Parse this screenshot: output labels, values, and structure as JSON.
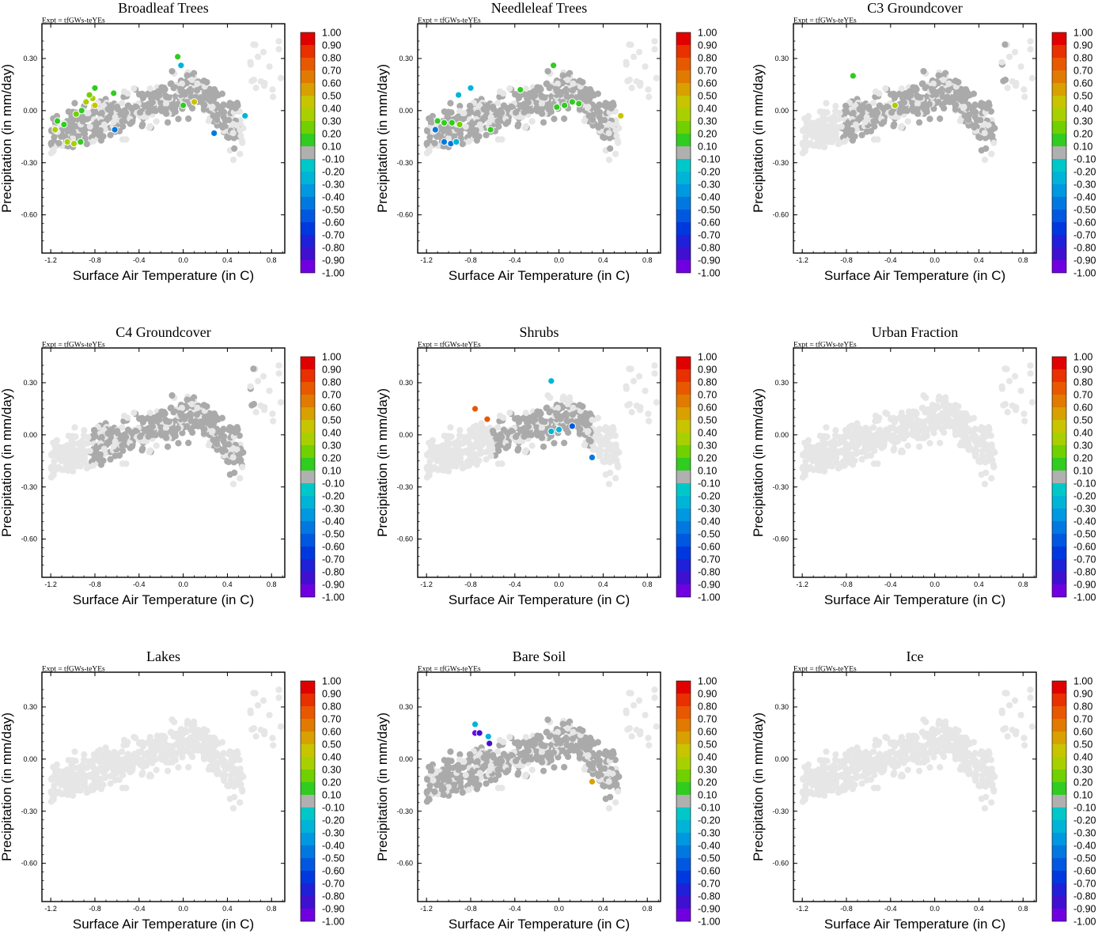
{
  "figure": {
    "expt_label": "Expt = tfGWs-teYEs",
    "xlabel": "Surface Air Temperature (in C)",
    "ylabel": "Precipitation (in mm/day)",
    "xticks": [
      "-1.2",
      "-0.8",
      "-0.4",
      "0.0",
      "0.4",
      "0.8"
    ],
    "yticks": [
      "0.30",
      "0.00",
      "-0.30",
      "-0.60"
    ],
    "colorbar_labels": [
      "1.00",
      "0.90",
      "0.80",
      "0.70",
      "0.60",
      "0.50",
      "0.40",
      "0.30",
      "0.20",
      "0.10",
      "-0.10",
      "-0.20",
      "-0.30",
      "-0.40",
      "-0.50",
      "-0.60",
      "-0.70",
      "-0.80",
      "-0.90",
      "-1.00"
    ],
    "colorbar_colors": [
      "#e00000",
      "#e83000",
      "#e85800",
      "#e07a00",
      "#d8a000",
      "#c8c400",
      "#a8d000",
      "#70d000",
      "#30cc20",
      "#b0b0b0",
      "#00c8c8",
      "#00b4d8",
      "#0098e0",
      "#0078e0",
      "#0058e0",
      "#0038e0",
      "#2020d8",
      "#4010d0",
      "#7000e0"
    ],
    "background_color": "#e6e6e6",
    "gray_color": "#aaaaaa"
  },
  "chart_data": [
    {
      "type": "scatter",
      "title": "Broadleaf Trees",
      "xlim": [
        -1.28,
        0.92
      ],
      "ylim": [
        -0.82,
        0.5
      ],
      "region": {
        "x": [
          -1.2,
          0.5
        ],
        "y": [
          -0.22,
          0.3
        ]
      },
      "highlighted": [
        {
          "x": -0.05,
          "y": 0.31,
          "v": 0.15
        },
        {
          "x": -0.02,
          "y": 0.26,
          "v": -0.25
        },
        {
          "x": -1.14,
          "y": -0.06,
          "v": 0.15
        },
        {
          "x": -1.08,
          "y": -0.08,
          "v": 0.2
        },
        {
          "x": -1.16,
          "y": -0.11,
          "v": 0.3
        },
        {
          "x": -1.05,
          "y": -0.18,
          "v": 0.3
        },
        {
          "x": -0.99,
          "y": -0.19,
          "v": 0.35
        },
        {
          "x": -0.93,
          "y": -0.18,
          "v": 0.2
        },
        {
          "x": -0.97,
          "y": -0.02,
          "v": 0.25
        },
        {
          "x": -0.92,
          "y": 0.0,
          "v": 0.2
        },
        {
          "x": -0.88,
          "y": 0.05,
          "v": 0.3
        },
        {
          "x": -0.82,
          "y": 0.07,
          "v": 0.3
        },
        {
          "x": -0.85,
          "y": 0.09,
          "v": 0.25
        },
        {
          "x": -0.8,
          "y": 0.13,
          "v": 0.15
        },
        {
          "x": -0.63,
          "y": 0.1,
          "v": 0.15
        },
        {
          "x": -0.8,
          "y": 0.03,
          "v": 0.45
        },
        {
          "x": 0.0,
          "y": 0.03,
          "v": 0.2
        },
        {
          "x": 0.1,
          "y": 0.05,
          "v": 0.45
        },
        {
          "x": 0.56,
          "y": -0.03,
          "v": -0.3
        },
        {
          "x": 0.28,
          "y": -0.13,
          "v": -0.45
        },
        {
          "x": -0.62,
          "y": -0.11,
          "v": -0.4
        }
      ]
    },
    {
      "type": "scatter",
      "title": "Needleleaf Trees",
      "xlim": [
        -1.28,
        0.92
      ],
      "ylim": [
        -0.82,
        0.5
      ],
      "region": {
        "x": [
          -1.2,
          0.5
        ],
        "y": [
          -0.22,
          0.3
        ]
      },
      "highlighted": [
        {
          "x": -0.05,
          "y": 0.26,
          "v": 0.2
        },
        {
          "x": -0.35,
          "y": 0.12,
          "v": 0.2
        },
        {
          "x": -0.8,
          "y": 0.13,
          "v": -0.25
        },
        {
          "x": -0.91,
          "y": 0.09,
          "v": -0.3
        },
        {
          "x": -1.1,
          "y": -0.06,
          "v": 0.15
        },
        {
          "x": -1.04,
          "y": -0.07,
          "v": 0.2
        },
        {
          "x": -0.97,
          "y": -0.07,
          "v": 0.2
        },
        {
          "x": -0.9,
          "y": -0.08,
          "v": 0.25
        },
        {
          "x": -1.12,
          "y": -0.11,
          "v": -0.45
        },
        {
          "x": -1.04,
          "y": -0.18,
          "v": -0.4
        },
        {
          "x": -0.98,
          "y": -0.19,
          "v": -0.45
        },
        {
          "x": -0.93,
          "y": -0.18,
          "v": -0.3
        },
        {
          "x": -0.02,
          "y": 0.02,
          "v": 0.2
        },
        {
          "x": 0.05,
          "y": 0.03,
          "v": 0.15
        },
        {
          "x": 0.12,
          "y": 0.05,
          "v": 0.15
        },
        {
          "x": 0.18,
          "y": 0.04,
          "v": 0.2
        },
        {
          "x": 0.56,
          "y": -0.03,
          "v": 0.45
        },
        {
          "x": -0.62,
          "y": -0.11,
          "v": 0.2
        }
      ]
    },
    {
      "type": "scatter",
      "title": "C3 Groundcover",
      "xlim": [
        -1.28,
        0.92
      ],
      "ylim": [
        -0.82,
        0.5
      ],
      "region": {
        "x": [
          -0.85,
          0.7
        ],
        "y": [
          -0.5,
          0.42
        ]
      },
      "highlighted": [
        {
          "x": -0.74,
          "y": 0.2,
          "v": 0.2
        },
        {
          "x": -0.36,
          "y": 0.03,
          "v": 0.3
        }
      ]
    },
    {
      "type": "scatter",
      "title": "C4 Groundcover",
      "xlim": [
        -1.28,
        0.92
      ],
      "ylim": [
        -0.82,
        0.5
      ],
      "region": {
        "x": [
          -0.85,
          0.7
        ],
        "y": [
          -0.55,
          0.42
        ]
      },
      "highlighted": []
    },
    {
      "type": "scatter",
      "title": "Shrubs",
      "xlim": [
        -1.28,
        0.92
      ],
      "ylim": [
        -0.82,
        0.5
      ],
      "region": {
        "x": [
          -0.6,
          0.3
        ],
        "y": [
          -0.3,
          0.2
        ]
      },
      "highlighted": [
        {
          "x": -0.76,
          "y": 0.15,
          "v": 0.75
        },
        {
          "x": -0.65,
          "y": 0.09,
          "v": 0.72
        },
        {
          "x": -0.07,
          "y": 0.31,
          "v": -0.2
        },
        {
          "x": -0.07,
          "y": 0.02,
          "v": -0.25
        },
        {
          "x": 0.0,
          "y": 0.03,
          "v": -0.3
        },
        {
          "x": 0.12,
          "y": 0.05,
          "v": -0.5
        },
        {
          "x": 0.3,
          "y": -0.13,
          "v": -0.4
        }
      ]
    },
    {
      "type": "scatter",
      "title": "Urban Fraction",
      "xlim": [
        -1.28,
        0.92
      ],
      "ylim": [
        -0.82,
        0.5
      ],
      "region": null,
      "highlighted": []
    },
    {
      "type": "scatter",
      "title": "Lakes",
      "xlim": [
        -1.28,
        0.92
      ],
      "ylim": [
        -0.82,
        0.5
      ],
      "region": null,
      "highlighted": []
    },
    {
      "type": "scatter",
      "title": "Bare Soil",
      "xlim": [
        -1.28,
        0.92
      ],
      "ylim": [
        -0.82,
        0.5
      ],
      "region": {
        "x": [
          -1.2,
          0.6
        ],
        "y": [
          -0.45,
          0.42
        ]
      },
      "highlighted": [
        {
          "x": -0.76,
          "y": 0.2,
          "v": -0.25
        },
        {
          "x": -0.76,
          "y": 0.15,
          "v": -0.9
        },
        {
          "x": -0.72,
          "y": 0.15,
          "v": -0.85
        },
        {
          "x": -0.64,
          "y": 0.13,
          "v": -0.25
        },
        {
          "x": -0.63,
          "y": 0.09,
          "v": -0.88
        },
        {
          "x": 0.3,
          "y": -0.13,
          "v": 0.6
        }
      ]
    },
    {
      "type": "scatter",
      "title": "Ice",
      "xlim": [
        -1.28,
        0.92
      ],
      "ylim": [
        -0.82,
        0.5
      ],
      "region": null,
      "highlighted": []
    }
  ]
}
